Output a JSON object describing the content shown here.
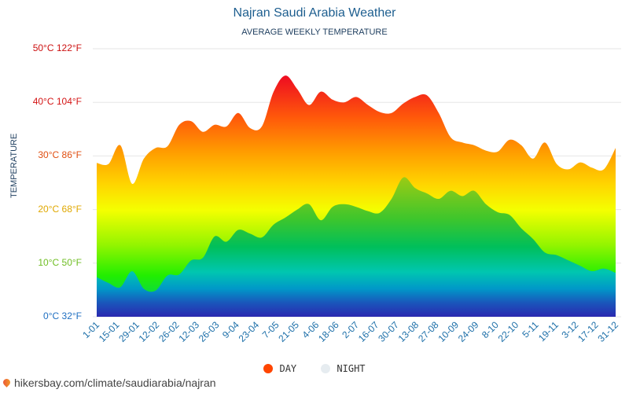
{
  "footer_url": "hikersbay.com/climate/saudiarabia/najran",
  "colors": {
    "title": "#1d5e8f",
    "night_legend": "#e6ecf0",
    "day_legend": "#ff4500"
  },
  "chart_data": {
    "type": "area",
    "title": "Najran Saudi Arabia Weather",
    "subtitle": "AVERAGE WEEKLY TEMPERATURE",
    "ylabel": "TEMPERATURE",
    "ylim": [
      0,
      50
    ],
    "grid": true,
    "legend_position": "bottom",
    "y_ticks": [
      {
        "value": 0,
        "label": "0°C 32°F",
        "color": "#1f6fc1"
      },
      {
        "value": 10,
        "label": "10°C 50°F",
        "color": "#6fbe23"
      },
      {
        "value": 20,
        "label": "20°C 68°F",
        "color": "#e0a800"
      },
      {
        "value": 30,
        "label": "30°C 86°F",
        "color": "#e04e10"
      },
      {
        "value": 40,
        "label": "40°C 104°F",
        "color": "#d41515"
      },
      {
        "value": 50,
        "label": "50°C 122°F",
        "color": "#cc1010"
      }
    ],
    "x_labels": [
      "1-01",
      "15-01",
      "29-01",
      "12-02",
      "26-02",
      "12-03",
      "26-03",
      "9-04",
      "23-04",
      "7-05",
      "21-05",
      "4-06",
      "18-06",
      "2-07",
      "16-07",
      "30-07",
      "13-08",
      "27-08",
      "10-09",
      "24-09",
      "8-10",
      "22-10",
      "5-11",
      "19-11",
      "3-12",
      "17-12",
      "31-12"
    ],
    "series": [
      {
        "name": "DAY",
        "values": [
          28.7,
          28.5,
          32.0,
          24.8,
          29.5,
          31.5,
          31.8,
          35.8,
          36.5,
          34.5,
          35.8,
          35.5,
          38.0,
          35.2,
          35.5,
          42.0,
          45.0,
          42.5,
          39.5,
          42.0,
          40.5,
          40.0,
          41.0,
          39.5,
          38.2,
          38.0,
          39.8,
          41.0,
          41.3,
          38.0,
          33.5,
          32.5,
          32.0,
          31.0,
          30.8,
          33.0,
          32.0,
          29.5,
          32.5,
          28.5,
          27.5,
          28.8,
          27.8,
          27.5,
          31.5
        ]
      },
      {
        "name": "NIGHT",
        "values": [
          7.4,
          6.3,
          5.5,
          8.5,
          5.2,
          4.9,
          7.7,
          7.9,
          10.5,
          11.0,
          15.0,
          14.0,
          16.2,
          15.5,
          14.8,
          17.2,
          18.5,
          20.0,
          21.0,
          18.0,
          20.5,
          21.0,
          20.5,
          19.7,
          19.4,
          22.0,
          26.0,
          24.0,
          23.0,
          22.0,
          23.5,
          22.5,
          23.5,
          21.0,
          19.5,
          19.0,
          16.5,
          14.5,
          12.0,
          11.5,
          10.5,
          9.5,
          8.5,
          9.0,
          8.2
        ]
      }
    ]
  }
}
